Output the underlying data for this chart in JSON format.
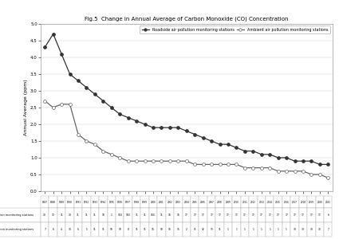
{
  "title": "Fig.5  Change in Annual Average of Carbon Monoxide (CO) Concentration",
  "ylabel": "Annual Average (ppm)",
  "legend_ambient": "Ambient air pollution monitoring stations",
  "legend_roadside": "Roadside air pollution monitoring stations",
  "years": [
    1987,
    1988,
    1989,
    1990,
    1991,
    1992,
    1993,
    1994,
    1995,
    1996,
    1997,
    1998,
    1999,
    2000,
    2001,
    2002,
    2003,
    2004,
    2005,
    2006,
    2007,
    2008,
    2009,
    2010,
    2011,
    2012,
    2013,
    2014,
    2015,
    2016,
    2017,
    2018,
    2019,
    2020,
    2021
  ],
  "ambient": [
    2.7,
    2.5,
    2.6,
    2.6,
    1.7,
    1.5,
    1.4,
    1.2,
    1.1,
    1.0,
    0.9,
    0.9,
    0.9,
    0.9,
    0.9,
    0.9,
    0.9,
    0.9,
    0.8,
    0.8,
    0.8,
    0.8,
    0.8,
    0.8,
    0.7,
    0.7,
    0.7,
    0.7,
    0.6,
    0.6,
    0.6,
    0.6,
    0.5,
    0.5,
    0.4
  ],
  "roadside": [
    4.3,
    4.7,
    4.1,
    3.5,
    3.3,
    3.1,
    2.9,
    2.7,
    2.5,
    2.3,
    2.2,
    2.1,
    2.0,
    1.9,
    1.9,
    1.9,
    1.9,
    1.8,
    1.7,
    1.6,
    1.5,
    1.4,
    1.4,
    1.3,
    1.2,
    1.2,
    1.1,
    1.1,
    1.0,
    1.0,
    0.9,
    0.9,
    0.9,
    0.8,
    0.8
  ],
  "ylim": [
    0.0,
    5.0
  ],
  "yticks": [
    0.0,
    0.5,
    1.0,
    1.5,
    2.0,
    2.5,
    3.0,
    3.5,
    4.0,
    4.5,
    5.0
  ],
  "ambient_color": "#666666",
  "roadside_color": "#333333",
  "bg_color": "#ffffff",
  "table_ambient_label": "Ambient air pollution monitoring stations",
  "table_roadside_label": "Roadside air pollution monitoring stations",
  "table_ambient": [
    30,
    13,
    11,
    30,
    11,
    11,
    11,
    10,
    1,
    160,
    160,
    11,
    11,
    160,
    11,
    16,
    16,
    17,
    17,
    17,
    17,
    17,
    17,
    17,
    17,
    17,
    17,
    17,
    17,
    17,
    17,
    17,
    17,
    17,
    6
  ],
  "table_roadside": [
    7,
    6,
    4,
    30,
    6,
    5,
    11,
    11,
    10,
    10,
    8,
    11,
    11,
    16,
    18,
    16,
    15,
    2,
    11,
    12,
    13,
    11,
    1,
    1,
    1,
    1,
    1,
    1,
    1,
    1,
    30,
    30,
    30,
    30,
    7
  ]
}
